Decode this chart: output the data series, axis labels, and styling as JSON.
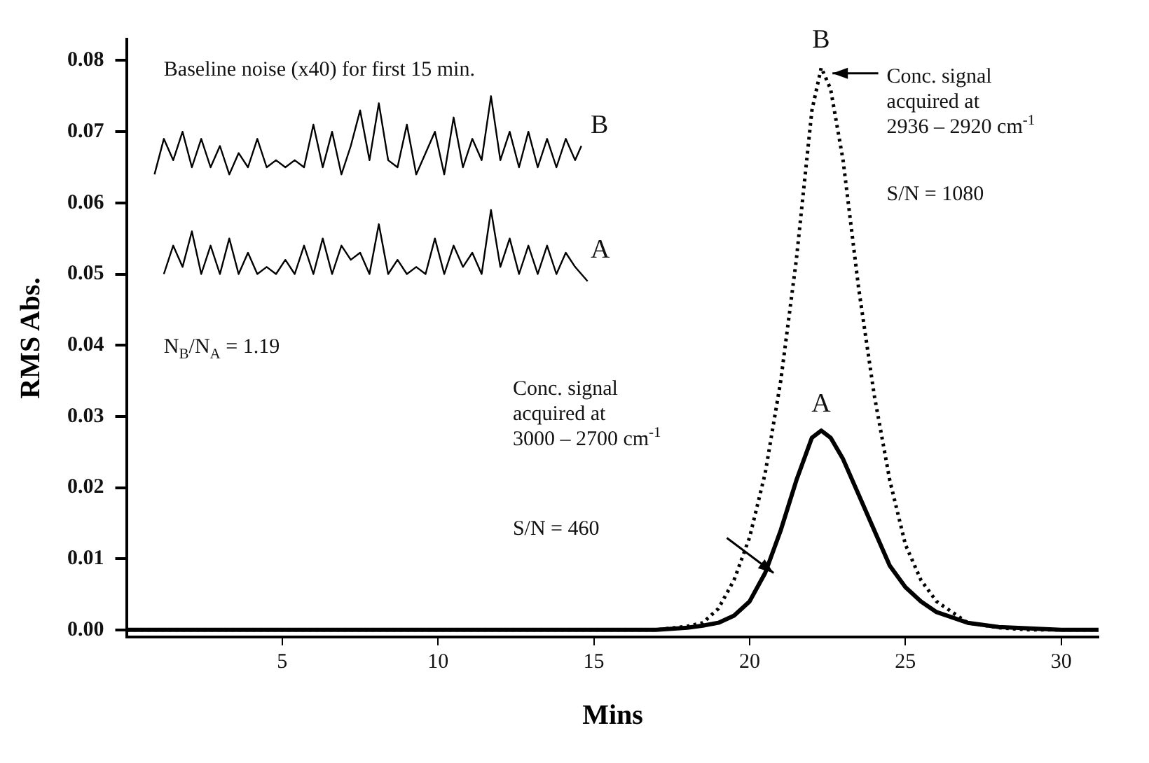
{
  "chart_data": {
    "type": "line",
    "xlabel": "Mins",
    "ylabel": "RMS Abs.",
    "xlim": [
      0,
      31.2
    ],
    "ylim": [
      -0.001,
      0.083
    ],
    "xticks": [
      5,
      10,
      15,
      20,
      25,
      30
    ],
    "yticks": [
      {
        "value": 0,
        "label": "0.00"
      },
      {
        "value": 0.01,
        "label": "0.01"
      },
      {
        "value": 0.02,
        "label": "0.02"
      },
      {
        "value": 0.03,
        "label": "0.03"
      },
      {
        "value": 0.04,
        "label": "0.04"
      },
      {
        "value": 0.05,
        "label": "0.05"
      },
      {
        "value": 0.06,
        "label": "0.06"
      },
      {
        "value": 0.07,
        "label": "0.07"
      },
      {
        "value": 0.08,
        "label": "0.08"
      }
    ],
    "grid": false,
    "legend": false,
    "marker": "none",
    "series": [
      {
        "color": "#000000",
        "line_style": "solid",
        "x": [
          0,
          5,
          10,
          15,
          17,
          18,
          18.5,
          19,
          19.5,
          20,
          20.5,
          21,
          21.5,
          22,
          22.3,
          22.6,
          23,
          23.5,
          24,
          24.5,
          25,
          25.5,
          26,
          27,
          28,
          29,
          30,
          31.2
        ],
        "values": [
          0,
          0,
          0,
          0,
          0,
          0.0003,
          0.0006,
          0.001,
          0.002,
          0.004,
          0.008,
          0.014,
          0.021,
          0.027,
          0.028,
          0.027,
          0.024,
          0.019,
          0.014,
          0.009,
          0.006,
          0.004,
          0.0025,
          0.001,
          0.0004,
          0.0002,
          0,
          0
        ]
      },
      {
        "color": "#000000",
        "line_style": "dotted",
        "x": [
          0,
          5,
          10,
          15,
          17,
          18,
          18.5,
          19,
          19.5,
          20,
          20.5,
          21,
          21.5,
          22,
          22.3,
          22.6,
          23,
          23.5,
          24,
          24.5,
          25,
          25.5,
          26,
          27,
          28,
          29,
          30,
          31.2
        ],
        "values": [
          0,
          0,
          0,
          0,
          0,
          0.0005,
          0.001,
          0.003,
          0.007,
          0.013,
          0.022,
          0.035,
          0.052,
          0.073,
          0.079,
          0.076,
          0.066,
          0.048,
          0.033,
          0.021,
          0.012,
          0.007,
          0.004,
          0.001,
          0.0003,
          0,
          0,
          0
        ]
      },
      {
        "color": "#000000",
        "line_style": "solid",
        "x": [
          0.9,
          1.2,
          1.5,
          1.8,
          2.1,
          2.4,
          2.7,
          3.0,
          3.3,
          3.6,
          3.9,
          4.2,
          4.5,
          4.8,
          5.1,
          5.4,
          5.7,
          6.0,
          6.3,
          6.6,
          6.9,
          7.2,
          7.5,
          7.8,
          8.1,
          8.4,
          8.7,
          9.0,
          9.3,
          9.6,
          9.9,
          10.2,
          10.5,
          10.8,
          11.1,
          11.4,
          11.7,
          12.0,
          12.3,
          12.6,
          12.9,
          13.2,
          13.5,
          13.8,
          14.1,
          14.4,
          14.6
        ],
        "values": [
          0.064,
          0.069,
          0.066,
          0.07,
          0.065,
          0.069,
          0.065,
          0.068,
          0.064,
          0.067,
          0.065,
          0.069,
          0.065,
          0.066,
          0.065,
          0.066,
          0.065,
          0.071,
          0.065,
          0.07,
          0.064,
          0.068,
          0.073,
          0.066,
          0.074,
          0.066,
          0.065,
          0.071,
          0.064,
          0.067,
          0.07,
          0.064,
          0.072,
          0.065,
          0.069,
          0.066,
          0.075,
          0.066,
          0.07,
          0.065,
          0.07,
          0.065,
          0.069,
          0.065,
          0.069,
          0.066,
          0.068
        ]
      },
      {
        "color": "#000000",
        "line_style": "solid",
        "x": [
          1.2,
          1.5,
          1.8,
          2.1,
          2.4,
          2.7,
          3.0,
          3.3,
          3.6,
          3.9,
          4.2,
          4.5,
          4.8,
          5.1,
          5.4,
          5.7,
          6.0,
          6.3,
          6.6,
          6.9,
          7.2,
          7.5,
          7.8,
          8.1,
          8.4,
          8.7,
          9.0,
          9.3,
          9.6,
          9.9,
          10.2,
          10.5,
          10.8,
          11.1,
          11.4,
          11.7,
          12.0,
          12.3,
          12.6,
          12.9,
          13.2,
          13.5,
          13.8,
          14.1,
          14.4,
          14.8
        ],
        "values": [
          0.05,
          0.054,
          0.051,
          0.056,
          0.05,
          0.054,
          0.05,
          0.055,
          0.05,
          0.053,
          0.05,
          0.051,
          0.05,
          0.052,
          0.05,
          0.054,
          0.05,
          0.055,
          0.05,
          0.054,
          0.052,
          0.053,
          0.05,
          0.057,
          0.05,
          0.052,
          0.05,
          0.051,
          0.05,
          0.055,
          0.05,
          0.054,
          0.051,
          0.053,
          0.05,
          0.059,
          0.051,
          0.055,
          0.05,
          0.054,
          0.05,
          0.054,
          0.05,
          0.053,
          0.051,
          0.049
        ]
      }
    ],
    "annotations": [
      "Baseline noise (x40) for first 15 min.",
      "B",
      "A",
      "N$_{B}$/N$_{A}$ = 1.19",
      {
        "text": "B",
        "x": 22.3,
        "y": 0.079
      },
      {
        "text": "A",
        "x": 22.3,
        "y": 0.028
      },
      "Conc. signal\nacquired at\n2936 – 2920 cm$^{-1}$",
      "S/N = 1080",
      "Conc. signal\nacquired at\n3000 – 2700 cm$^{-1}$",
      "S/N = 460"
    ]
  }
}
